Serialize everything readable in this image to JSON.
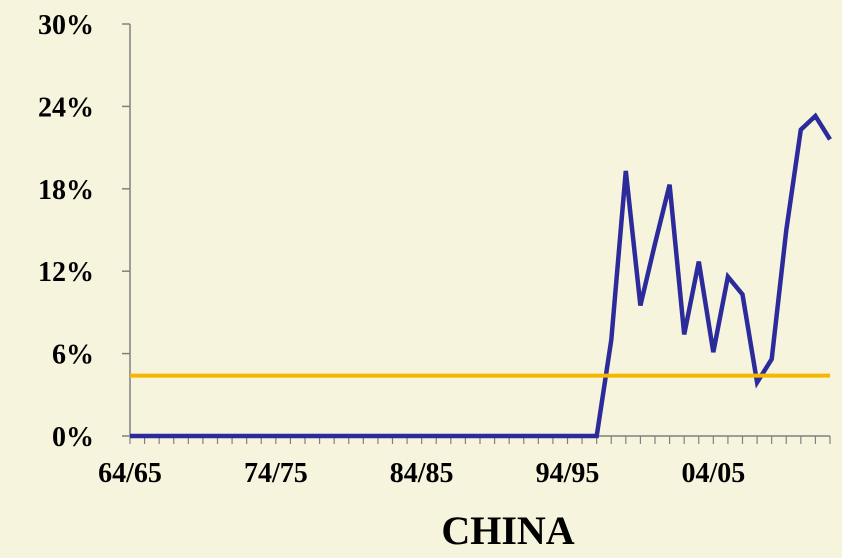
{
  "chart_data": {
    "type": "line",
    "title": "CHINA",
    "xlabel": "",
    "ylabel": "",
    "ylim": [
      0,
      30
    ],
    "y_ticks": [
      "0%",
      "6%",
      "12%",
      "18%",
      "24%",
      "30%"
    ],
    "y_tick_values": [
      0,
      6,
      12,
      18,
      24,
      30
    ],
    "x_tick_labels": [
      "64/65",
      "74/75",
      "84/85",
      "94/95",
      "04/05"
    ],
    "x_tick_label_index": [
      0,
      10,
      20,
      30,
      40
    ],
    "x": [
      "64/65",
      "65/66",
      "66/67",
      "67/68",
      "68/69",
      "69/70",
      "70/71",
      "71/72",
      "72/73",
      "73/74",
      "74/75",
      "75/76",
      "76/77",
      "77/78",
      "78/79",
      "79/80",
      "80/81",
      "81/82",
      "82/83",
      "83/84",
      "84/85",
      "85/86",
      "86/87",
      "87/88",
      "88/89",
      "89/90",
      "90/91",
      "91/92",
      "92/93",
      "93/94",
      "94/95",
      "95/96",
      "96/97",
      "97/98",
      "98/99",
      "99/00",
      "00/01",
      "01/02",
      "02/03",
      "03/04",
      "04/05",
      "05/06",
      "06/07",
      "07/08",
      "08/09",
      "09/10",
      "10/11",
      "11/12",
      "12/13"
    ],
    "series": [
      {
        "color": "#2b2b9c",
        "values": [
          0,
          0,
          0,
          0,
          0,
          0,
          0,
          0,
          0,
          0,
          0,
          0,
          0,
          0,
          0,
          0,
          0,
          0,
          0,
          0,
          0,
          0,
          0,
          0,
          0,
          0,
          0,
          0,
          0,
          0,
          0,
          0,
          0,
          7,
          19.3,
          9.5,
          14,
          18.3,
          7.4,
          12.7,
          6.1,
          11.6,
          10.3,
          3.9,
          5.6,
          15,
          22.3,
          23.3,
          21.6
        ]
      },
      {
        "color": "#f5b800",
        "values": [
          4.4,
          4.4,
          4.4,
          4.4,
          4.4,
          4.4,
          4.4,
          4.4,
          4.4,
          4.4,
          4.4,
          4.4,
          4.4,
          4.4,
          4.4,
          4.4,
          4.4,
          4.4,
          4.4,
          4.4,
          4.4,
          4.4,
          4.4,
          4.4,
          4.4,
          4.4,
          4.4,
          4.4,
          4.4,
          4.4,
          4.4,
          4.4,
          4.4,
          4.4,
          4.4,
          4.4,
          4.4,
          4.4,
          4.4,
          4.4,
          4.4,
          4.4,
          4.4,
          4.4,
          4.4,
          4.4,
          4.4,
          4.4,
          4.4
        ]
      }
    ],
    "grid": false,
    "legend": "none"
  }
}
